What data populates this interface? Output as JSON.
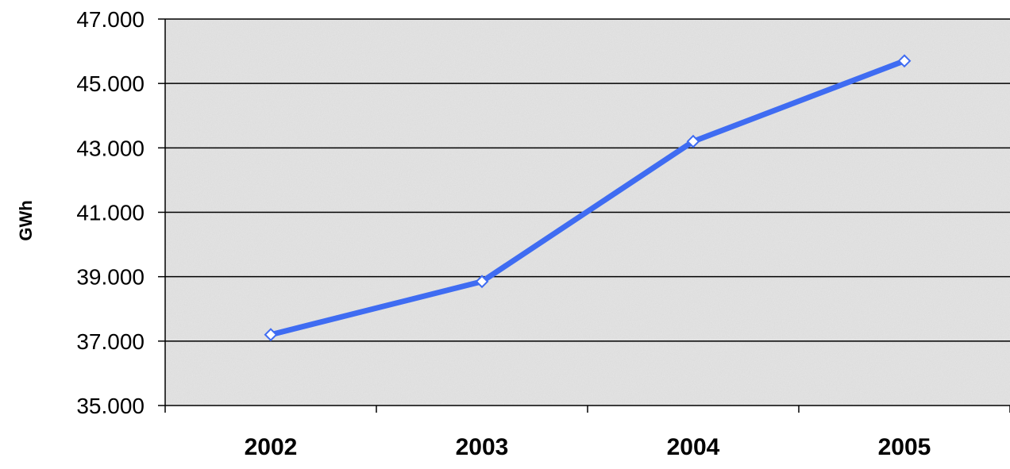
{
  "chart_data": {
    "type": "line",
    "title": "",
    "xlabel": "",
    "ylabel": "GWh",
    "categories": [
      "2002",
      "2003",
      "2004",
      "2005"
    ],
    "series": [
      {
        "values": [
          37200,
          38850,
          43200,
          45700
        ],
        "color": "#3f6cf2",
        "marker": "diamond"
      }
    ],
    "ylim": [
      35000,
      47000
    ],
    "yticks": [
      35000,
      37000,
      39000,
      41000,
      43000,
      45000,
      47000
    ],
    "ytick_labels": [
      "35.000",
      "37.000",
      "39.000",
      "41.000",
      "43.000",
      "45.000",
      "47.000"
    ],
    "grid": true,
    "plot_background": "#e6e6e6",
    "legend": "none"
  }
}
